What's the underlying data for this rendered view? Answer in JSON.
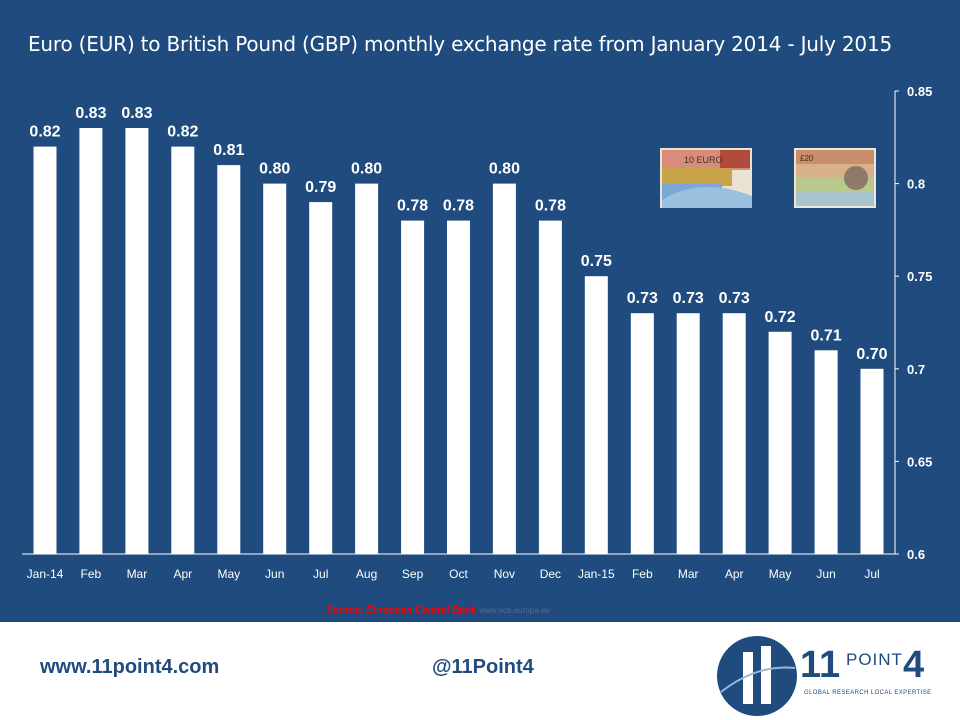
{
  "chart_data": {
    "type": "bar",
    "title": "Euro (EUR) to British Pound (GBP) monthly exchange rate from January 2014 - July 2015",
    "categories": [
      "Jan-14",
      "Feb",
      "Mar",
      "Apr",
      "May",
      "Jun",
      "Jul",
      "Aug",
      "Sep",
      "Oct",
      "Nov",
      "Dec",
      "Jan-15",
      "Feb",
      "Mar",
      "Apr",
      "May",
      "Jun",
      "Jul"
    ],
    "values": [
      0.82,
      0.83,
      0.83,
      0.82,
      0.81,
      0.8,
      0.79,
      0.8,
      0.78,
      0.78,
      0.8,
      0.78,
      0.75,
      0.73,
      0.73,
      0.73,
      0.72,
      0.71,
      0.7
    ],
    "value_labels": [
      "0.82",
      "0.83",
      "0.83",
      "0.82",
      "0.81",
      "0.80",
      "0.79",
      "0.80",
      "0.78",
      "0.78",
      "0.80",
      "0.78",
      "0.75",
      "0.73",
      "0.73",
      "0.73",
      "0.72",
      "0.71",
      "0.70"
    ],
    "ylim": [
      0.6,
      0.85
    ],
    "y_ticks": [
      "0.6",
      "0.65",
      "0.7",
      "0.75",
      "0.8",
      "0.85"
    ],
    "y_tick_values": [
      0.6,
      0.65,
      0.7,
      0.75,
      0.8,
      0.85
    ],
    "y_axis_side": "right",
    "grid": false,
    "colors": {
      "background": "#1f4b7e",
      "bar": "#ffffff",
      "text": "#ffffff"
    }
  },
  "source": {
    "label": "Source: European Central Bank",
    "url": "www.ecb.europa.eu"
  },
  "footer": {
    "website": "www.11point4.com",
    "handle": "@11Point4",
    "logo_big": "11",
    "logo_point": "POINT",
    "logo_four": "4",
    "logo_tagline": "GLOBAL RESEARCH LOCAL EXPERTISE"
  },
  "images": {
    "euro_notes_icon": "euro-banknotes",
    "pound_notes_icon": "pound-banknotes",
    "euro_note_text": "10 EURO",
    "pound_note_text": "£20"
  }
}
